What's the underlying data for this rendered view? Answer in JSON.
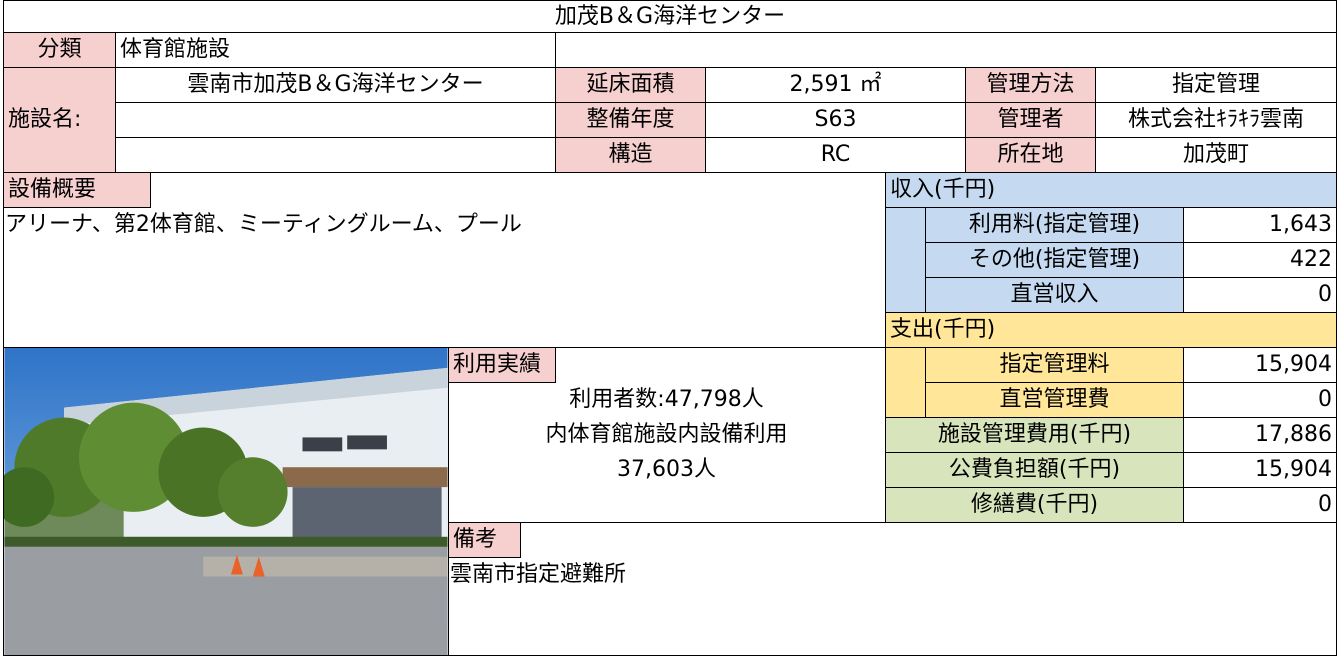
{
  "header": {
    "title": "加茂B＆G海洋センター"
  },
  "facility": {
    "category_label": "分類",
    "category": "体育館施設",
    "name_label": "施設名:",
    "name": "雲南市加茂B＆G海洋センター",
    "attributes": [
      {
        "label": "延床面積",
        "value": "2,591 ㎡"
      },
      {
        "label": "整備年度",
        "value": "S63"
      },
      {
        "label": "構造",
        "value": "RC"
      }
    ],
    "management": [
      {
        "label": "管理方法",
        "value": "指定管理"
      },
      {
        "label": "管理者",
        "value": "株式会社ｷﾗｷﾗ雲南"
      },
      {
        "label": "所在地",
        "value": "加茂町"
      }
    ]
  },
  "equipment": {
    "label": "設備概要",
    "text": "アリーナ、第2体育館、ミーティングルーム、プール"
  },
  "usage": {
    "label": "利用実績",
    "lines": [
      "利用者数:47,798人",
      "内体育館施設内設備利用",
      "37,603人"
    ]
  },
  "remarks": {
    "label": "備考",
    "text": "雲南市指定避難所"
  },
  "finance": {
    "income": {
      "label": "収入(千円)",
      "items": [
        {
          "label": "利用料(指定管理)",
          "value": "1,643"
        },
        {
          "label": "その他(指定管理)",
          "value": "422"
        },
        {
          "label": "直営収入",
          "value": "0"
        }
      ]
    },
    "expenditure": {
      "label": "支出(千円)",
      "items": [
        {
          "label": "指定管理料",
          "value": "15,904"
        },
        {
          "label": "直営管理費",
          "value": "0"
        }
      ]
    },
    "totals": [
      {
        "label": "施設管理費用(千円)",
        "value": "17,886"
      },
      {
        "label": "公費負担額(千円)",
        "value": "15,904"
      },
      {
        "label": "修繕費(千円)",
        "value": "0"
      }
    ]
  }
}
